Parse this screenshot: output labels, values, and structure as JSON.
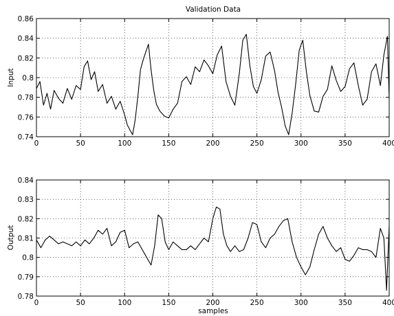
{
  "chart_data": [
    {
      "type": "line",
      "title": "Validation Data",
      "xlabel": "",
      "ylabel": "Input",
      "xlim": [
        0,
        400
      ],
      "ylim": [
        0.74,
        0.86
      ],
      "xticks": [
        0,
        50,
        100,
        150,
        200,
        250,
        300,
        350,
        400
      ],
      "yticks": [
        0.74,
        0.76,
        0.78,
        0.8,
        0.82,
        0.84,
        0.86
      ],
      "xtick_labels": [
        "0",
        "50",
        "100",
        "150",
        "200",
        "250",
        "300",
        "350",
        "400"
      ],
      "ytick_labels": [
        "0.74",
        "0.76",
        "0.78",
        "0.8",
        "0.82",
        "0.84",
        "0.86"
      ],
      "grid": true,
      "line_color": "#000000",
      "series": [
        {
          "x": [
            0,
            4,
            8,
            12,
            16,
            20,
            25,
            30,
            35,
            40,
            45,
            50,
            54,
            58,
            62,
            66,
            70,
            75,
            80,
            85,
            90,
            95,
            100,
            103,
            106,
            109,
            112,
            115,
            118,
            121,
            124,
            127,
            130,
            133,
            136,
            140,
            145,
            150,
            155,
            160,
            165,
            170,
            175,
            180,
            185,
            190,
            195,
            200,
            205,
            210,
            215,
            220,
            225,
            230,
            234,
            238,
            242,
            246,
            250,
            255,
            260,
            265,
            270,
            274,
            278,
            282,
            286,
            290,
            294,
            298,
            302,
            306,
            310,
            315,
            320,
            325,
            330,
            335,
            340,
            345,
            350,
            355,
            360,
            365,
            370,
            375,
            380,
            385,
            390,
            394,
            398,
            400
          ],
          "y": [
            0.789,
            0.796,
            0.772,
            0.784,
            0.768,
            0.787,
            0.779,
            0.774,
            0.789,
            0.778,
            0.792,
            0.788,
            0.811,
            0.817,
            0.798,
            0.806,
            0.786,
            0.793,
            0.774,
            0.781,
            0.768,
            0.776,
            0.762,
            0.752,
            0.747,
            0.742,
            0.757,
            0.781,
            0.808,
            0.818,
            0.826,
            0.834,
            0.808,
            0.787,
            0.773,
            0.766,
            0.761,
            0.759,
            0.768,
            0.774,
            0.796,
            0.801,
            0.793,
            0.811,
            0.806,
            0.818,
            0.812,
            0.804,
            0.823,
            0.832,
            0.796,
            0.781,
            0.772,
            0.804,
            0.838,
            0.844,
            0.812,
            0.791,
            0.784,
            0.798,
            0.822,
            0.826,
            0.807,
            0.785,
            0.77,
            0.751,
            0.742,
            0.764,
            0.794,
            0.828,
            0.838,
            0.807,
            0.782,
            0.766,
            0.765,
            0.781,
            0.788,
            0.812,
            0.797,
            0.786,
            0.791,
            0.809,
            0.815,
            0.792,
            0.772,
            0.778,
            0.806,
            0.814,
            0.792,
            0.823,
            0.842,
            0.779
          ]
        }
      ]
    },
    {
      "type": "line",
      "title": "",
      "xlabel": "samples",
      "ylabel": "Output",
      "xlim": [
        0,
        400
      ],
      "ylim": [
        0.78,
        0.84
      ],
      "xticks": [
        0,
        50,
        100,
        150,
        200,
        250,
        300,
        350,
        400
      ],
      "yticks": [
        0.78,
        0.79,
        0.8,
        0.81,
        0.82,
        0.83,
        0.84
      ],
      "xtick_labels": [
        "0",
        "50",
        "100",
        "150",
        "200",
        "250",
        "300",
        "350",
        "400"
      ],
      "ytick_labels": [
        "0.78",
        "0.79",
        "0.8",
        "0.81",
        "0.82",
        "0.83",
        "0.84"
      ],
      "grid": true,
      "line_color": "#000000",
      "series": [
        {
          "x": [
            0,
            5,
            10,
            15,
            20,
            25,
            30,
            35,
            40,
            45,
            50,
            55,
            60,
            65,
            70,
            75,
            80,
            85,
            90,
            95,
            100,
            105,
            110,
            115,
            120,
            125,
            130,
            134,
            138,
            142,
            146,
            150,
            155,
            160,
            165,
            170,
            175,
            180,
            185,
            190,
            195,
            200,
            204,
            208,
            212,
            216,
            220,
            225,
            230,
            235,
            240,
            245,
            250,
            255,
            260,
            265,
            270,
            275,
            280,
            285,
            290,
            295,
            300,
            305,
            310,
            315,
            320,
            325,
            330,
            335,
            340,
            345,
            350,
            355,
            360,
            365,
            370,
            375,
            380,
            385,
            390,
            394,
            397,
            400
          ],
          "y": [
            0.809,
            0.805,
            0.809,
            0.811,
            0.809,
            0.807,
            0.808,
            0.807,
            0.806,
            0.808,
            0.806,
            0.809,
            0.807,
            0.81,
            0.814,
            0.812,
            0.815,
            0.806,
            0.808,
            0.813,
            0.814,
            0.805,
            0.807,
            0.808,
            0.804,
            0.8,
            0.796,
            0.806,
            0.822,
            0.82,
            0.808,
            0.804,
            0.808,
            0.806,
            0.804,
            0.804,
            0.806,
            0.804,
            0.807,
            0.81,
            0.808,
            0.82,
            0.826,
            0.825,
            0.812,
            0.806,
            0.803,
            0.806,
            0.803,
            0.804,
            0.81,
            0.818,
            0.817,
            0.808,
            0.805,
            0.81,
            0.812,
            0.816,
            0.819,
            0.82,
            0.808,
            0.8,
            0.795,
            0.791,
            0.795,
            0.804,
            0.812,
            0.816,
            0.81,
            0.806,
            0.803,
            0.805,
            0.799,
            0.798,
            0.801,
            0.805,
            0.804,
            0.804,
            0.803,
            0.8,
            0.815,
            0.81,
            0.783,
            0.816
          ]
        }
      ]
    }
  ]
}
